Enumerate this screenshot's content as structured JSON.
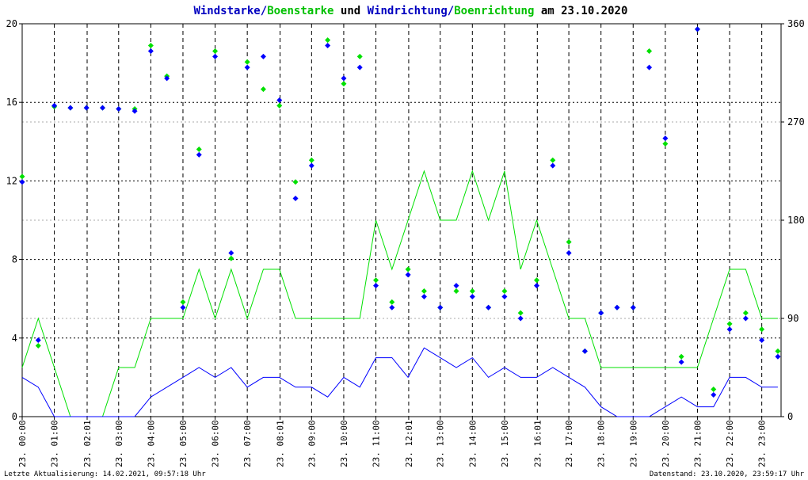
{
  "chart_data": {
    "type": "line",
    "title": [
      "/",
      " und ",
      "/",
      " am 23.10.2020"
    ],
    "x": [
      0,
      0.5,
      1,
      1.5,
      2,
      2.5,
      3,
      3.5,
      4,
      4.5,
      5,
      5.5,
      6,
      6.5,
      7,
      7.5,
      8,
      8.5,
      9,
      9.5,
      10,
      10.5,
      11,
      11.5,
      12,
      12.5,
      13,
      13.5,
      14,
      14.5,
      15,
      15.5,
      16,
      16.5,
      17,
      17.5,
      18,
      18.5,
      19,
      19.5,
      20,
      20.5,
      21,
      21.5,
      22,
      22.5,
      23,
      23.5
    ],
    "series": [
      {
        "name": "Windstarke",
        "type": "line",
        "color": "#0000ff",
        "values": [
          2,
          1.5,
          0,
          0,
          0,
          0,
          0,
          0,
          1,
          1.5,
          2,
          2.5,
          2,
          2.5,
          1.5,
          2,
          2,
          1.5,
          1.5,
          1,
          2,
          1.5,
          3,
          3,
          2,
          3.5,
          3,
          2.5,
          3,
          2,
          2.5,
          2,
          2,
          2.5,
          2,
          1.5,
          0.5,
          0,
          0,
          0,
          0.5,
          1,
          0.5,
          0.5,
          2,
          2,
          1.5,
          1.5
        ]
      },
      {
        "name": "Boenstarke",
        "type": "line",
        "color": "#00e000",
        "values": [
          2.5,
          5,
          2.5,
          0,
          0,
          0,
          2.5,
          2.5,
          5,
          5,
          5,
          7.5,
          5,
          7.5,
          5,
          7.5,
          7.5,
          5,
          5,
          5,
          5,
          5,
          10,
          7.5,
          10,
          12.5,
          10,
          10,
          12.5,
          10,
          12.5,
          7.5,
          10,
          7.5,
          5,
          5,
          2.5,
          2.5,
          2.5,
          2.5,
          2.5,
          2.5,
          2.5,
          5,
          7.5,
          7.5,
          5,
          5
        ]
      },
      {
        "name": "Windrichtung",
        "type": "scatter",
        "axis": "y2",
        "color": "#0000ff",
        "values": [
          215,
          70,
          285,
          283,
          283,
          283,
          282,
          280,
          335,
          310,
          100,
          240,
          330,
          150,
          320,
          330,
          290,
          200,
          230,
          340,
          310,
          320,
          120,
          100,
          130,
          110,
          100,
          120,
          110,
          100,
          110,
          90,
          120,
          230,
          150,
          60,
          95,
          100,
          100,
          320,
          255,
          50,
          355,
          20,
          80,
          90,
          70,
          55
        ]
      },
      {
        "name": "Boenrichtung",
        "type": "scatter",
        "axis": "y2",
        "color": "#00e000",
        "values": [
          220,
          65,
          284,
          283,
          283,
          283,
          282,
          282,
          340,
          312,
          105,
          245,
          335,
          145,
          325,
          300,
          285,
          215,
          235,
          345,
          305,
          330,
          125,
          105,
          135,
          115,
          100,
          115,
          115,
          100,
          115,
          95,
          125,
          235,
          160,
          60,
          95,
          100,
          100,
          335,
          250,
          55,
          355,
          25,
          85,
          95,
          80,
          60
        ]
      }
    ],
    "xlim": [
      0,
      23.6
    ],
    "ylim": [
      0,
      20
    ],
    "yticks": [
      0,
      4,
      8,
      12,
      16,
      20
    ],
    "y2lim": [
      0,
      360
    ],
    "y2ticks": [
      0,
      90,
      180,
      270,
      360
    ],
    "xticks": [
      {
        "value": 0,
        "label": "23. 00:00"
      },
      {
        "value": 1,
        "label": "23. 01:00"
      },
      {
        "value": 2.02,
        "label": "23. 02:01"
      },
      {
        "value": 3,
        "label": "23. 03:00"
      },
      {
        "value": 4,
        "label": "23. 04:00"
      },
      {
        "value": 5,
        "label": "23. 05:00"
      },
      {
        "value": 6,
        "label": "23. 06:00"
      },
      {
        "value": 7,
        "label": "23. 07:00"
      },
      {
        "value": 8.02,
        "label": "23. 08:01"
      },
      {
        "value": 9,
        "label": "23. 09:00"
      },
      {
        "value": 10,
        "label": "23. 10:00"
      },
      {
        "value": 11,
        "label": "23. 11:00"
      },
      {
        "value": 12.02,
        "label": "23. 12:01"
      },
      {
        "value": 13,
        "label": "23. 13:00"
      },
      {
        "value": 14,
        "label": "23. 14:00"
      },
      {
        "value": 15,
        "label": "23. 15:00"
      },
      {
        "value": 16.02,
        "label": "23. 16:01"
      },
      {
        "value": 17,
        "label": "23. 17:00"
      },
      {
        "value": 18,
        "label": "23. 18:00"
      },
      {
        "value": 19,
        "label": "23. 19:00"
      },
      {
        "value": 20,
        "label": "23. 20:00"
      },
      {
        "value": 21,
        "label": "23. 21:00"
      },
      {
        "value": 22,
        "label": "23. 22:00"
      },
      {
        "value": 23,
        "label": "23. 23:00"
      }
    ],
    "grid": true,
    "footer_left": "Letzte Aktualisierung: 14.02.2021, 09:57:18 Uhr",
    "footer_right": "Datenstand: 23.10.2020, 23:59:17 Uhr"
  }
}
